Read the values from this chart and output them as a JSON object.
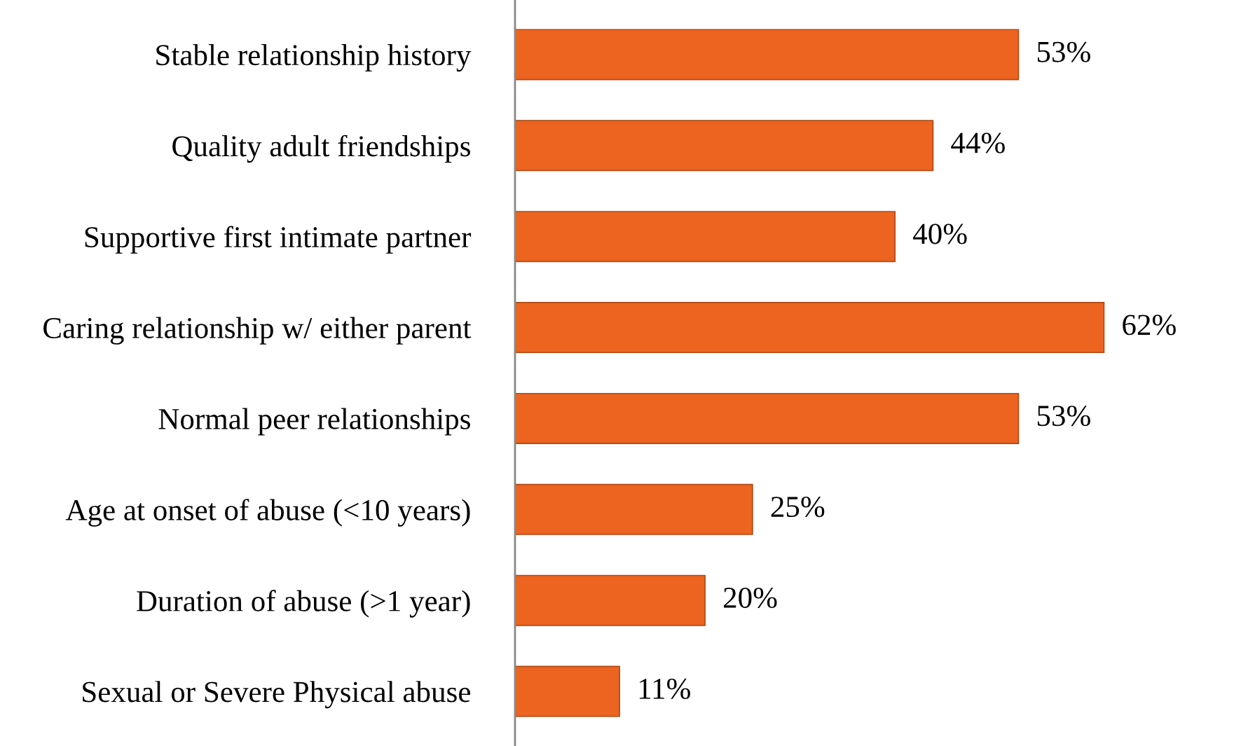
{
  "chart_data": {
    "type": "bar",
    "orientation": "horizontal",
    "categories": [
      "Stable relationship history",
      "Quality adult friendships",
      "Supportive first intimate partner",
      "Caring relationship w/ either parent",
      "Normal peer relationships",
      "Age at onset of abuse (<10 years)",
      "Duration of abuse (>1 year)",
      "Sexual or Severe Physical abuse"
    ],
    "values": [
      53,
      44,
      40,
      62,
      53,
      25,
      20,
      11
    ],
    "value_labels": [
      "53%",
      "44%",
      "40%",
      "62%",
      "53%",
      "25%",
      "20%",
      "11%"
    ],
    "color": "#ec6420",
    "grid": false,
    "legend": false
  }
}
